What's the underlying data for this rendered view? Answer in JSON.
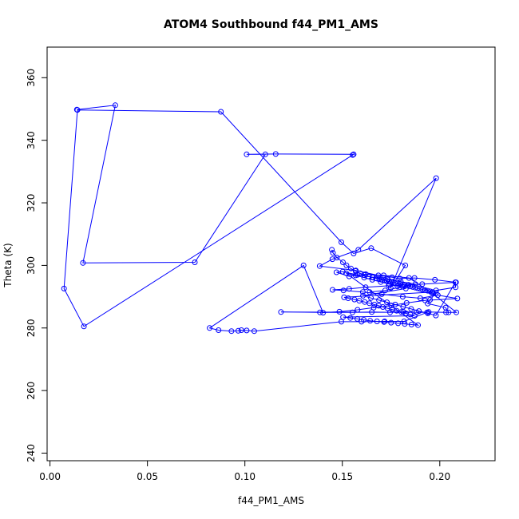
{
  "chart_data": {
    "type": "scatter",
    "title": "ATOM4 Southbound f44_PM1_AMS",
    "xlabel": "f44_PM1_AMS",
    "ylabel": "Theta (K)",
    "xlim": [
      0.0,
      0.21
    ],
    "ylim": [
      240,
      360
    ],
    "xticks": [
      "0.00",
      "0.05",
      "0.10",
      "0.15",
      "0.20"
    ],
    "yticks": [
      "240",
      "260",
      "280",
      "300",
      "320",
      "340",
      "360"
    ],
    "grid": false,
    "legend": "none",
    "color": "#0000ff",
    "style": "points connected by lines",
    "series": [
      {
        "x": [
          0.0138,
          0.0335,
          0.0169,
          0.0743,
          0.1105,
          0.1009,
          0.1158,
          0.1558,
          0.1553,
          0.0174,
          0.0072,
          0.0141,
          0.0877,
          0.1495,
          0.1558,
          0.1648,
          0.1823,
          0.1748,
          0.1981,
          0.1582,
          0.1449,
          0.1384,
          0.1569,
          0.1685,
          0.1755,
          0.1795,
          0.187,
          0.1975,
          0.2083,
          0.191,
          0.184,
          0.1738,
          0.162,
          0.1535,
          0.145,
          0.1506,
          0.1605,
          0.1702,
          0.181,
          0.19,
          0.199,
          0.209,
          0.1925,
          0.183,
          0.175,
          0.1661,
          0.1578,
          0.1485,
          0.1401,
          0.1301,
          0.0819,
          0.0865,
          0.0931,
          0.0966,
          0.0982,
          0.1009,
          0.1048,
          0.1495,
          0.1598,
          0.1717,
          0.1817,
          0.1935,
          0.1185,
          0.1385,
          0.1552,
          0.1651,
          0.1745,
          0.1812,
          0.188,
          0.1943,
          0.2032,
          0.2085,
          0.196,
          0.1842,
          0.1712,
          0.162,
          0.1535,
          0.147,
          0.1502,
          0.1578,
          0.1655,
          0.1732,
          0.18,
          0.1875,
          0.181,
          0.172,
          0.164
        ],
        "y": [
          349.8,
          351.2,
          300.8,
          301.0,
          335.5,
          335.5,
          335.6,
          335.5,
          335.3,
          280.5,
          292.6,
          349.7,
          349.1,
          307.4,
          303.8,
          305.5,
          300.0,
          292.8,
          327.9,
          305.0,
          302.0,
          299.8,
          298.4,
          296.8,
          296.2,
          295.8,
          296.0,
          295.4,
          294.6,
          294.0,
          293.8,
          293.5,
          293.0,
          292.5,
          292.2,
          292.0,
          291.5,
          290.8,
          290.0,
          289.5,
          290.5,
          289.4,
          288.8,
          288.0,
          287.2,
          286.5,
          285.8,
          285.2,
          284.9,
          300.0,
          280.0,
          279.3,
          279.0,
          279.1,
          279.3,
          279.2,
          279.0,
          282.0,
          282.0,
          282.1,
          282.1,
          285.0,
          285.1,
          285.0,
          285.0,
          285.1,
          285.0,
          285.2,
          285.0,
          285.1,
          285.0,
          285.0,
          291.2,
          296.0,
          296.8,
          297.2,
          296.5,
          297.8,
          298.0,
          297.0,
          296.2,
          295.5,
          294.8,
          294.0,
          293.2,
          292.0,
          291.5
        ]
      },
      {
        "x": [
          0.1446,
          0.1452,
          0.1472,
          0.1503,
          0.1521,
          0.1544,
          0.1568,
          0.1591,
          0.1612,
          0.1633,
          0.1658,
          0.1673,
          0.1689,
          0.1702,
          0.1716,
          0.1728,
          0.1741,
          0.1756,
          0.1769,
          0.1784,
          0.1796,
          0.1809,
          0.1821,
          0.1835,
          0.1848,
          0.1861,
          0.1874,
          0.1886,
          0.1899,
          0.1911,
          0.1925,
          0.1938,
          0.1951,
          0.1963,
          0.1509,
          0.153,
          0.1562,
          0.1587,
          0.1615,
          0.1639,
          0.1664,
          0.1687,
          0.1708,
          0.1732,
          0.1755,
          0.1779,
          0.1802,
          0.1826,
          0.1849,
          0.1871,
          0.1504,
          0.1541,
          0.1577,
          0.161,
          0.1643,
          0.1678,
          0.1714,
          0.175,
          0.1786,
          0.182,
          0.1855,
          0.1888,
          0.152,
          0.1568,
          0.1612,
          0.1654,
          0.1697,
          0.1741,
          0.1783,
          0.1826,
          0.1606,
          0.1647,
          0.1688,
          0.1729,
          0.1771,
          0.1812,
          0.1853,
          0.1893,
          0.1939,
          0.198,
          0.208,
          0.2081,
          0.1981,
          0.198,
          0.195,
          0.1938,
          0.203,
          0.2045
        ],
        "y": [
          305.0,
          304.0,
          302.5,
          301.0,
          300.0,
          299.0,
          298.2,
          297.5,
          296.9,
          296.5,
          296.2,
          295.9,
          295.7,
          295.5,
          295.3,
          295.1,
          294.9,
          294.7,
          294.5,
          294.3,
          294.1,
          293.9,
          293.7,
          293.5,
          293.3,
          293.1,
          292.9,
          292.7,
          292.5,
          292.3,
          292.1,
          291.9,
          291.7,
          291.5,
          289.8,
          289.5,
          289.1,
          288.7,
          288.3,
          287.9,
          287.5,
          287.1,
          286.7,
          286.3,
          285.9,
          285.5,
          285.1,
          284.7,
          284.3,
          283.9,
          283.5,
          283.2,
          282.9,
          282.6,
          282.3,
          282.1,
          281.9,
          281.7,
          281.5,
          281.3,
          281.1,
          280.9,
          297.5,
          296.8,
          296.1,
          295.4,
          294.7,
          294.0,
          293.3,
          292.6,
          290.3,
          289.6,
          288.9,
          288.2,
          287.5,
          286.8,
          286.1,
          285.4,
          284.7,
          284.0,
          294.6,
          293.0,
          292.0,
          291.2,
          289.0,
          287.8,
          286.5,
          285.0
        ]
      }
    ]
  }
}
